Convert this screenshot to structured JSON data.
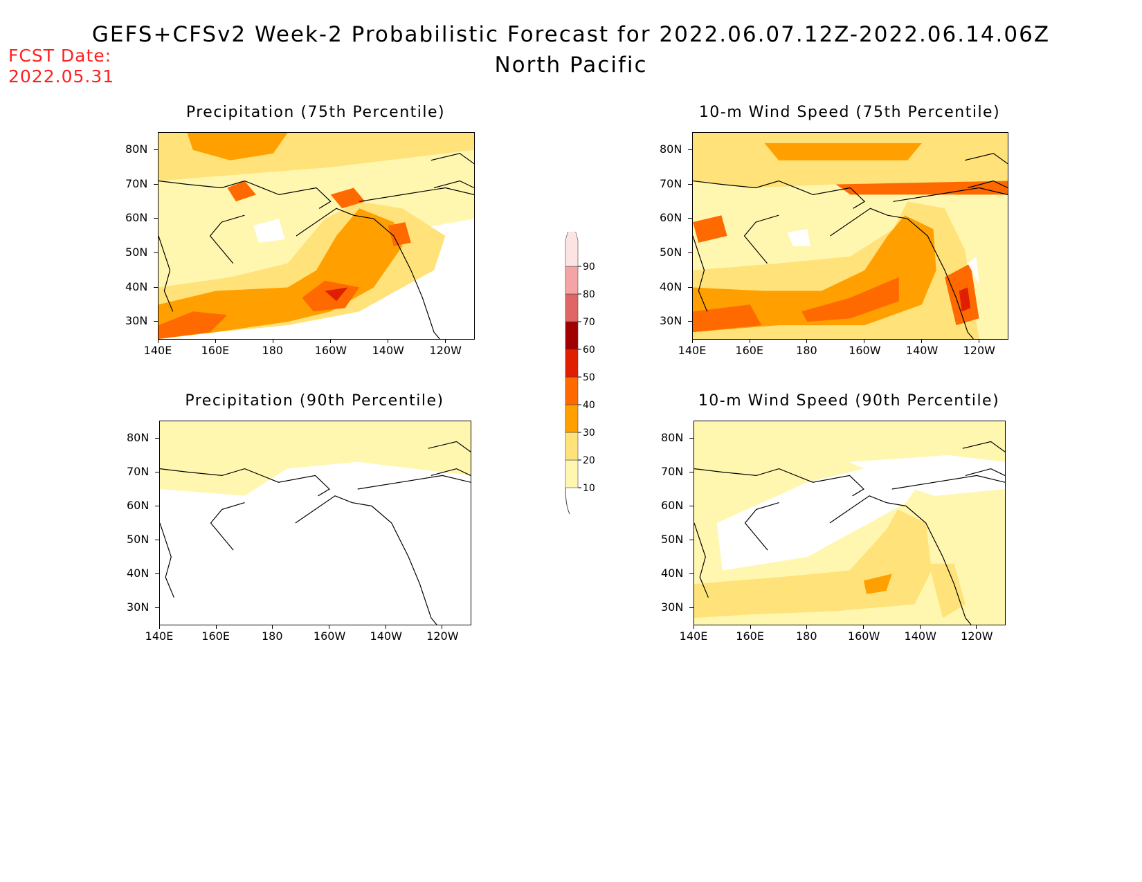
{
  "title": {
    "line1": "GEFS+CFSv2 Week-2 Probabilistic Forecast for 2022.06.07.12Z-2022.06.14.06Z",
    "line2": "North Pacific"
  },
  "fcst_date": {
    "label": "FCST Date:",
    "value": "2022.05.31"
  },
  "colors": {
    "c10": "#fff7b0",
    "c20": "#ffe27a",
    "c30": "#ffa000",
    "c40": "#ff6a00",
    "c50": "#e01e00",
    "c60": "#a00000",
    "c70": "#e06666",
    "c80": "#f4a4a4",
    "c90": "#fde4e4"
  },
  "colorbar": {
    "labels": [
      "10",
      "20",
      "30",
      "40",
      "50",
      "60",
      "70",
      "80",
      "90"
    ]
  },
  "axes": {
    "lat_labels": [
      "80N",
      "70N",
      "60N",
      "50N",
      "40N",
      "30N"
    ],
    "lon_labels": [
      "140E",
      "160E",
      "180",
      "160W",
      "140W",
      "120W"
    ]
  },
  "chart_data": [
    {
      "type": "heatmap",
      "title": "Precipitation (75th Percentile)",
      "xlabel": "",
      "ylabel": "",
      "legend": "shared colorbar, center",
      "levels": [
        10,
        20,
        30,
        40,
        50,
        60,
        70,
        80,
        90
      ],
      "grid": false
    },
    {
      "type": "heatmap",
      "title": "10-m Wind Speed (75th Percentile)",
      "xlabel": "",
      "ylabel": "",
      "legend": "shared colorbar, center",
      "levels": [
        10,
        20,
        30,
        40,
        50,
        60,
        70,
        80,
        90
      ],
      "grid": false
    },
    {
      "type": "heatmap",
      "title": "Precipitation (90th Percentile)",
      "xlabel": "",
      "ylabel": "",
      "legend": "shared colorbar, center",
      "levels": [
        10,
        20,
        30,
        40,
        50,
        60,
        70,
        80,
        90
      ],
      "grid": false
    },
    {
      "type": "heatmap",
      "title": "10-m Wind Speed (90th Percentile)",
      "xlabel": "",
      "ylabel": "",
      "legend": "shared colorbar, center",
      "levels": [
        10,
        20,
        30,
        40,
        50,
        60,
        70,
        80,
        90
      ],
      "grid": false
    }
  ]
}
